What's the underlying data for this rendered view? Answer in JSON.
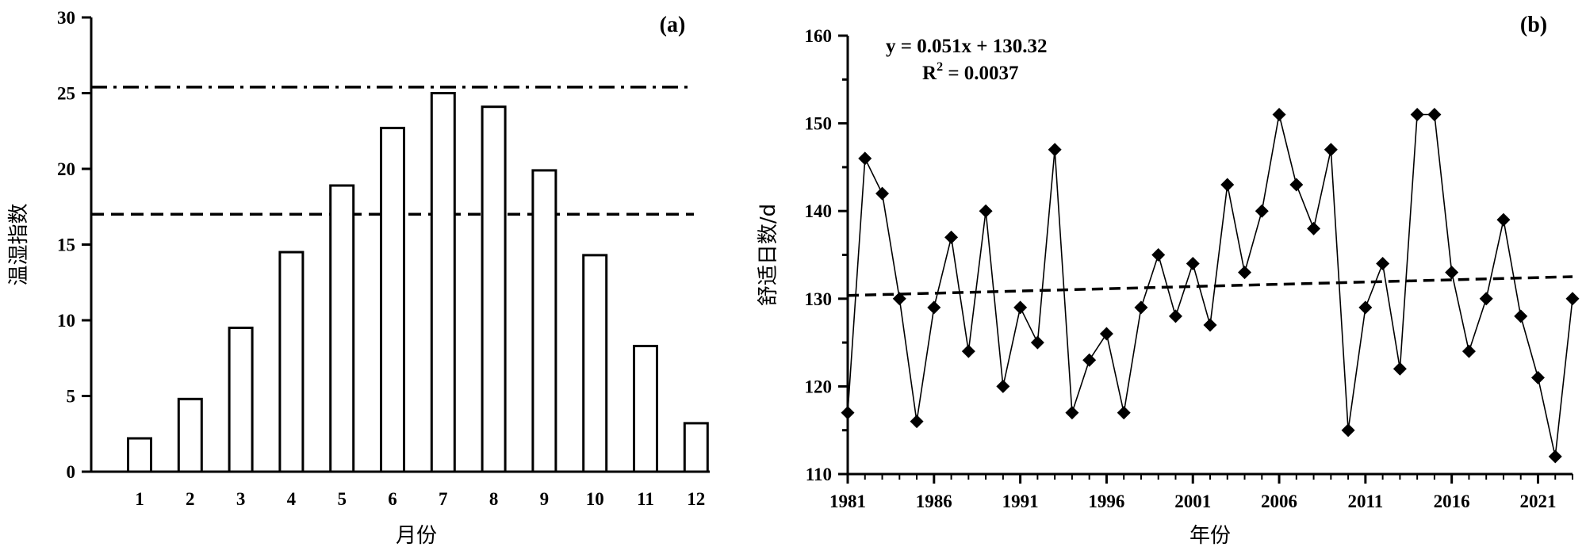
{
  "chart_data": [
    {
      "type": "bar",
      "panel_label": "(a)",
      "xlabel": "月份",
      "ylabel": "温湿指数",
      "categories": [
        "1",
        "2",
        "3",
        "4",
        "5",
        "6",
        "7",
        "8",
        "9",
        "10",
        "11",
        "12"
      ],
      "values": [
        2.2,
        4.8,
        9.5,
        14.5,
        18.9,
        22.7,
        25.0,
        24.1,
        19.9,
        14.3,
        8.3,
        3.2
      ],
      "ylim": [
        0,
        30
      ],
      "yticks": [
        "0",
        "5",
        "10",
        "15",
        "20",
        "25",
        "30"
      ],
      "reference_lines": [
        {
          "style": "dash-dot",
          "value": 25.4
        },
        {
          "style": "dashed",
          "value": 17
        }
      ],
      "grid": false
    },
    {
      "type": "line",
      "panel_label": "(b)",
      "xlabel": "年份",
      "ylabel": "舒适日数/d",
      "equation": "y = 0.051x + 130.32",
      "r2_label": "R",
      "r2_sup": "2",
      "r2_value": " = 0.0037",
      "x": [
        1981,
        1982,
        1983,
        1984,
        1985,
        1986,
        1987,
        1988,
        1989,
        1990,
        1991,
        1992,
        1993,
        1994,
        1995,
        1996,
        1997,
        1998,
        1999,
        2000,
        2001,
        2002,
        2003,
        2004,
        2005,
        2006,
        2007,
        2008,
        2009,
        2010,
        2011,
        2012,
        2013,
        2014,
        2015,
        2016,
        2017,
        2018,
        2019,
        2020,
        2021,
        2022,
        2023
      ],
      "values": [
        117,
        146,
        142,
        130,
        116,
        129,
        137,
        124,
        140,
        120,
        129,
        125,
        147,
        117,
        123,
        126,
        117,
        129,
        135,
        128,
        134,
        127,
        143,
        133,
        140,
        151,
        143,
        138,
        147,
        115,
        129,
        134,
        122,
        151,
        151,
        133,
        124,
        130,
        139,
        128,
        121,
        112,
        130
      ],
      "trend": {
        "slope": 0.051,
        "intercept": 130.32
      },
      "xlim": [
        1981,
        2023
      ],
      "xticks": [
        "1981",
        "1986",
        "1991",
        "1996",
        "2001",
        "2006",
        "2011",
        "2016",
        "2021"
      ],
      "ylim": [
        110,
        160
      ],
      "yticks": [
        "110",
        "120",
        "130",
        "140",
        "150",
        "160"
      ],
      "marker": "diamond",
      "grid": false
    }
  ]
}
